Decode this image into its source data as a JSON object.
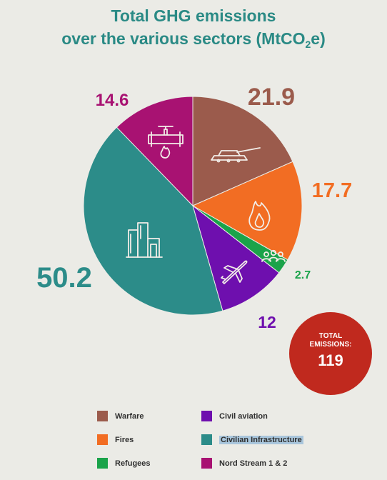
{
  "title": {
    "line1": "Total GHG emissions",
    "line2_pre": "over the various sectors (MtCO",
    "line2_sub": "2",
    "line2_post": "e)"
  },
  "chart_data": {
    "type": "pie",
    "title": "Total GHG emissions over the various sectors (MtCO2e)",
    "slices": [
      {
        "name": "Warfare",
        "value": 21.9,
        "label": "21.9",
        "color": "#9b5b4c",
        "icon": "tank-icon"
      },
      {
        "name": "Fires",
        "value": 17.7,
        "label": "17.7",
        "color": "#f26d23",
        "icon": "flame-icon"
      },
      {
        "name": "Refugees",
        "value": 2.7,
        "label": "2.7",
        "color": "#1aa34a",
        "icon": "people-icon"
      },
      {
        "name": "Civil aviation",
        "value": 12,
        "label": "12",
        "color": "#6e0fae",
        "icon": "airplane-icon"
      },
      {
        "name": "Civilian Infrastructure",
        "value": 50.2,
        "label": "50.2",
        "color": "#2c8c89",
        "icon": "buildings-icon"
      },
      {
        "name": "Nord Stream 1 & 2",
        "value": 14.6,
        "label": "14.6",
        "color": "#a81272",
        "icon": "pipeline-icon"
      }
    ],
    "legend_position": "bottom"
  },
  "total": {
    "label_line1": "TOTAL",
    "label_line2": "EMISSIONS:",
    "value": "119"
  }
}
